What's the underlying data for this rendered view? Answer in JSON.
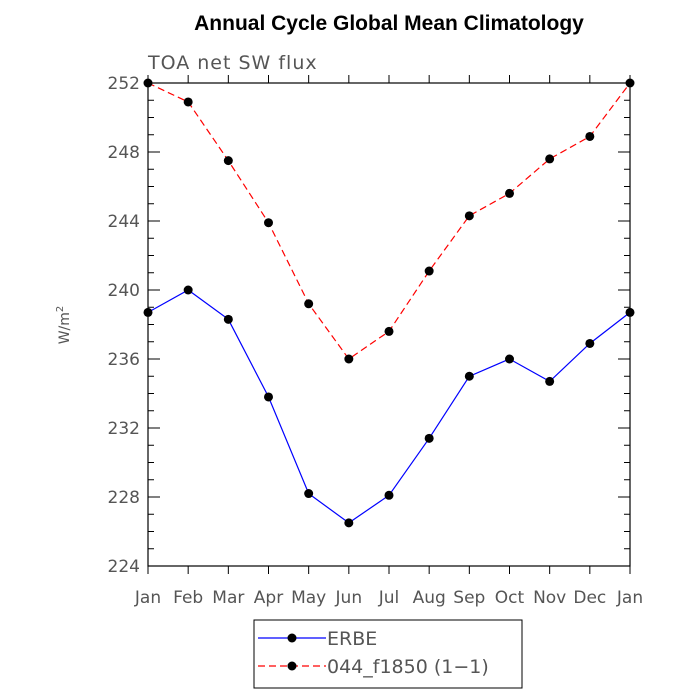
{
  "chart_data": {
    "type": "line",
    "title": "Annual Cycle Global Mean Climatology",
    "subtitle": "TOA net SW flux",
    "ylabel": "W/m",
    "ylabel_sup": "2",
    "ylim": [
      224,
      252
    ],
    "yticks": [
      224,
      228,
      232,
      236,
      240,
      244,
      248,
      252
    ],
    "categories": [
      "Jan",
      "Feb",
      "Mar",
      "Apr",
      "May",
      "Jun",
      "Jul",
      "Aug",
      "Sep",
      "Oct",
      "Nov",
      "Dec",
      "Jan"
    ],
    "grid": false,
    "legend_position": "bottom",
    "series": [
      {
        "name": "ERBE",
        "color": "#0000ff",
        "dash": "solid",
        "values": [
          238.7,
          240.0,
          238.3,
          233.8,
          228.2,
          226.5,
          228.1,
          231.4,
          235.0,
          236.0,
          234.7,
          236.9,
          238.7
        ]
      },
      {
        "name": "044_f1850 (1−1)",
        "color": "#ff0000",
        "dash": "dashed",
        "values": [
          252.0,
          250.9,
          247.5,
          243.9,
          239.2,
          236.0,
          237.6,
          241.1,
          244.3,
          245.6,
          247.6,
          248.9,
          252.0
        ]
      }
    ]
  }
}
